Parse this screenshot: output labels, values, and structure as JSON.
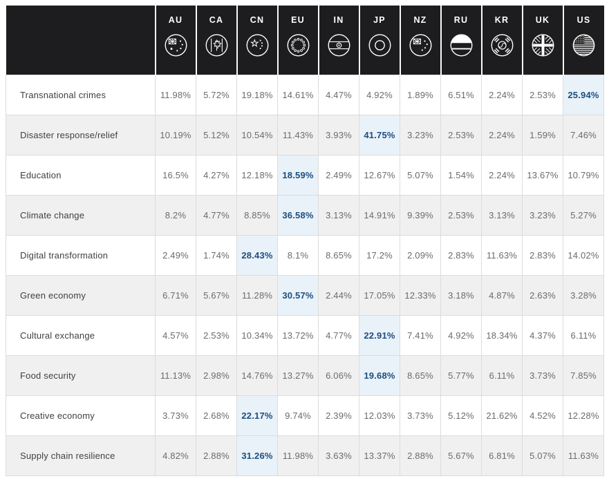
{
  "page": {
    "background": "#ffffff"
  },
  "header": {
    "background": "#1d1d1f",
    "text_color": "#ffffff",
    "columns": [
      {
        "code": "AU",
        "icon": "australia-flag-icon"
      },
      {
        "code": "CA",
        "icon": "canada-flag-icon"
      },
      {
        "code": "CN",
        "icon": "china-flag-icon"
      },
      {
        "code": "EU",
        "icon": "eu-flag-icon"
      },
      {
        "code": "IN",
        "icon": "india-flag-icon"
      },
      {
        "code": "JP",
        "icon": "japan-flag-icon"
      },
      {
        "code": "NZ",
        "icon": "new-zealand-flag-icon"
      },
      {
        "code": "RU",
        "icon": "russia-flag-icon"
      },
      {
        "code": "KR",
        "icon": "south-korea-flag-icon"
      },
      {
        "code": "UK",
        "icon": "uk-flag-icon"
      },
      {
        "code": "US",
        "icon": "us-flag-icon"
      }
    ]
  },
  "colors": {
    "header_bg": "#1d1d1f",
    "stripe_bg": "#f0f0f0",
    "border": "#dcdcdc",
    "label_text": "#3f3f3f",
    "value_text": "#6b6b6b",
    "highlight_bg": "#e9f1f9",
    "highlight_text": "#1b4e7e"
  },
  "chart_data": {
    "type": "table",
    "unit": "%",
    "columns": [
      "AU",
      "CA",
      "CN",
      "EU",
      "IN",
      "JP",
      "NZ",
      "RU",
      "KR",
      "UK",
      "US"
    ],
    "rows": [
      {
        "label": "Transnational crimes",
        "values": [
          11.98,
          5.72,
          19.18,
          14.61,
          4.47,
          4.92,
          1.89,
          6.51,
          2.24,
          2.53,
          25.94
        ],
        "highlight_index": 10
      },
      {
        "label": "Disaster response/relief",
        "values": [
          10.19,
          5.12,
          10.54,
          11.43,
          3.93,
          41.75,
          3.23,
          2.53,
          2.24,
          1.59,
          7.46
        ],
        "highlight_index": 5
      },
      {
        "label": "Education",
        "values": [
          16.5,
          4.27,
          12.18,
          18.59,
          2.49,
          12.67,
          5.07,
          1.54,
          2.24,
          13.67,
          10.79
        ],
        "highlight_index": 3
      },
      {
        "label": "Climate change",
        "values": [
          8.2,
          4.77,
          8.85,
          36.58,
          3.13,
          14.91,
          9.39,
          2.53,
          3.13,
          3.23,
          5.27
        ],
        "highlight_index": 3
      },
      {
        "label": "Digital transformation",
        "values": [
          2.49,
          1.74,
          28.43,
          8.1,
          8.65,
          17.2,
          2.09,
          2.83,
          11.63,
          2.83,
          14.02
        ],
        "highlight_index": 2
      },
      {
        "label": "Green economy",
        "values": [
          6.71,
          5.67,
          11.28,
          30.57,
          2.44,
          17.05,
          12.33,
          3.18,
          4.87,
          2.63,
          3.28
        ],
        "highlight_index": 3
      },
      {
        "label": "Cultural exchange",
        "values": [
          4.57,
          2.53,
          10.34,
          13.72,
          4.77,
          22.91,
          7.41,
          4.92,
          18.34,
          4.37,
          6.11
        ],
        "highlight_index": 5
      },
      {
        "label": "Food security",
        "values": [
          11.13,
          2.98,
          14.76,
          13.27,
          6.06,
          19.68,
          8.65,
          5.77,
          6.11,
          3.73,
          7.85
        ],
        "highlight_index": 5
      },
      {
        "label": "Creative economy",
        "values": [
          3.73,
          2.68,
          22.17,
          9.74,
          2.39,
          12.03,
          3.73,
          5.12,
          21.62,
          4.52,
          12.28
        ],
        "highlight_index": 2
      },
      {
        "label": "Supply chain resilience",
        "values": [
          4.82,
          2.88,
          31.26,
          11.98,
          3.63,
          13.37,
          2.88,
          5.67,
          6.81,
          5.07,
          11.63
        ],
        "highlight_index": 2
      }
    ]
  }
}
